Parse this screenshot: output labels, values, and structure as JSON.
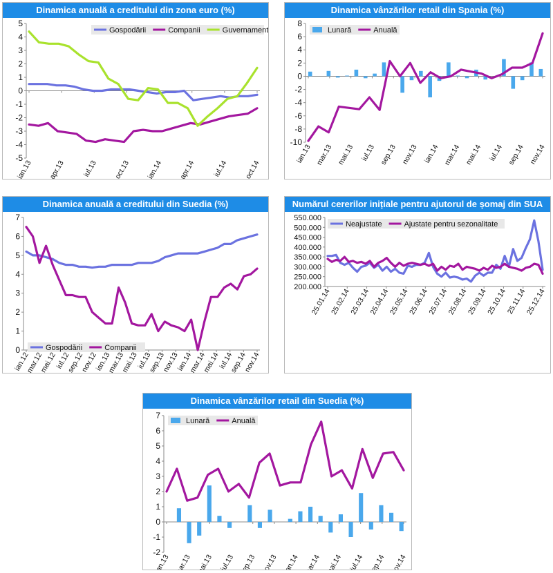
{
  "chart_data": [
    {
      "type": "line",
      "title": "Dinamica anuală a creditului din zona euro (%)",
      "x_labels": [
        "ian.13",
        "apr.13",
        "iul.13",
        "oct.13",
        "ian.14",
        "apr.14",
        "iul.14",
        "oct.14"
      ],
      "ylim": [
        -5,
        5
      ],
      "yticks": [
        5,
        4,
        3,
        2,
        1,
        0,
        -1,
        -2,
        -3,
        -4,
        -5
      ],
      "grid": false,
      "legend_position": "top",
      "series": [
        {
          "name": "Gospodării",
          "color": "#6b72e0",
          "values": [
            0.5,
            0.5,
            0.5,
            0.4,
            0.4,
            0.3,
            0.1,
            0.0,
            0.0,
            0.1,
            0.1,
            0.1,
            0.0,
            -0.1,
            -0.2,
            -0.1,
            -0.1,
            0.0,
            -0.7,
            -0.6,
            -0.5,
            -0.4,
            -0.5,
            -0.4,
            -0.4,
            -0.3
          ]
        },
        {
          "name": "Companii",
          "color": "#a3179f",
          "values": [
            -2.5,
            -2.6,
            -2.4,
            -3.0,
            -3.1,
            -3.2,
            -3.7,
            -3.8,
            -3.6,
            -3.7,
            -3.8,
            -3.0,
            -2.9,
            -3.0,
            -3.0,
            -2.8,
            -2.6,
            -2.4,
            -2.5,
            -2.3,
            -2.1,
            -1.9,
            -1.8,
            -1.7,
            -1.3
          ]
        },
        {
          "name": "Guvernamental",
          "color": "#a9e22d",
          "values": [
            4.4,
            3.6,
            3.5,
            3.5,
            3.3,
            2.7,
            2.2,
            2.1,
            0.9,
            0.5,
            -0.6,
            -0.7,
            0.2,
            0.1,
            -0.9,
            -0.9,
            -1.3,
            -2.6,
            -1.9,
            -1.3,
            -0.6,
            -0.4,
            0.6,
            1.7
          ]
        }
      ]
    },
    {
      "type": "bar+line",
      "title": "Dinamica vânzărilor retail din Spania (%)",
      "x_labels": [
        "ian.13",
        "mar.13",
        "mai.13",
        "iul.13",
        "sep.13",
        "nov.13",
        "ian.14",
        "mar.14",
        "mai.14",
        "iul.14",
        "sep.14",
        "nov.14"
      ],
      "ylim": [
        -10,
        8
      ],
      "yticks": [
        8,
        6,
        4,
        2,
        0,
        -2,
        -4,
        -6,
        -8,
        -10
      ],
      "grid": false,
      "legend_position": "top-left",
      "series": [
        {
          "name": "Lunară",
          "type": "bar",
          "color": "#4aa8ec",
          "values": [
            0.7,
            0.0,
            0.8,
            -0.2,
            0.1,
            1.0,
            -0.3,
            0.4,
            2.1,
            0.0,
            -2.5,
            -0.6,
            0.8,
            -3.2,
            -0.7,
            2.1,
            0.1,
            -0.3,
            1.0,
            -0.5,
            0.0,
            2.6,
            -1.9,
            -0.6,
            2.1,
            1.1
          ]
        },
        {
          "name": "Anuală",
          "type": "line",
          "color": "#a3179f",
          "values": [
            -9.8,
            -7.6,
            -8.5,
            -4.6,
            -4.8,
            -5.0,
            -3.2,
            -5.1,
            2.3,
            0.0,
            2.0,
            -1.0,
            0.6,
            -0.3,
            0.0,
            1.0,
            0.7,
            0.4,
            -0.3,
            0.3,
            1.3,
            1.3,
            2.0,
            6.5
          ]
        }
      ]
    },
    {
      "type": "line",
      "title": "Dinamica anuală a creditului din Suedia (%)",
      "x_labels": [
        "ian.12",
        "mar.12",
        "mai.12",
        "iul.12",
        "sep.12",
        "nov.12",
        "ian.13",
        "mar.13",
        "mai.13",
        "iul.13",
        "sep.13",
        "nov.13",
        "ian.14",
        "mar.14",
        "mai.14",
        "iul.14",
        "sep.14",
        "nov.14"
      ],
      "ylim": [
        0,
        7
      ],
      "yticks": [
        7,
        6,
        5,
        4,
        3,
        2,
        1,
        0
      ],
      "grid": false,
      "legend_position": "bottom-left",
      "series": [
        {
          "name": "Gospodării",
          "color": "#6b72e0",
          "values": [
            5.2,
            5.0,
            5.0,
            4.9,
            4.8,
            4.6,
            4.5,
            4.5,
            4.4,
            4.4,
            4.35,
            4.4,
            4.4,
            4.5,
            4.5,
            4.5,
            4.5,
            4.6,
            4.6,
            4.6,
            4.7,
            4.9,
            5.0,
            5.1,
            5.1,
            5.1,
            5.1,
            5.2,
            5.3,
            5.4,
            5.6,
            5.6,
            5.8,
            5.9,
            6.0,
            6.1
          ]
        },
        {
          "name": "Companii",
          "color": "#a3179f",
          "values": [
            6.5,
            6.0,
            4.6,
            5.5,
            4.5,
            3.7,
            2.9,
            2.9,
            2.8,
            2.8,
            2.0,
            1.7,
            1.4,
            1.4,
            3.3,
            2.5,
            1.4,
            1.3,
            1.3,
            1.9,
            1.0,
            1.5,
            1.3,
            1.2,
            1.0,
            1.6,
            0.0,
            1.5,
            2.8,
            2.8,
            3.3,
            3.5,
            3.2,
            3.9,
            4.0,
            4.3
          ]
        }
      ]
    },
    {
      "type": "line",
      "title": "Numărul cererilor inițiale pentru ajutorul de șomaj din SUA",
      "x_labels": [
        "25.01.14",
        "25.02.14",
        "25.03.14",
        "25.04.14",
        "25.05.14",
        "25.06.14",
        "25.07.14",
        "25.08.14",
        "25.09.14",
        "25.10.14",
        "25.11.14",
        "25.12.14"
      ],
      "ylim": [
        200000,
        550000
      ],
      "yticks": [
        "550.000",
        "500.000",
        "450.000",
        "400.000",
        "350.000",
        "300.000",
        "250.000",
        "200.000"
      ],
      "grid": false,
      "legend_position": "top",
      "series": [
        {
          "name": "Neajustate",
          "color": "#6b72e0",
          "values": [
            355000,
            355000,
            360000,
            320000,
            310000,
            320000,
            295000,
            275000,
            300000,
            305000,
            320000,
            295000,
            310000,
            280000,
            300000,
            275000,
            290000,
            270000,
            265000,
            305000,
            300000,
            310000,
            310000,
            320000,
            370000,
            300000,
            265000,
            250000,
            270000,
            245000,
            250000,
            245000,
            235000,
            240000,
            225000,
            255000,
            270000,
            255000,
            270000,
            270000,
            310000,
            290000,
            355000,
            300000,
            390000,
            330000,
            345000,
            395000,
            440000,
            535000,
            430000,
            285000
          ]
        },
        {
          "name": "Ajustate pentru sezonalitate",
          "color": "#a3179f",
          "values": [
            340000,
            325000,
            335000,
            330000,
            350000,
            325000,
            330000,
            320000,
            325000,
            315000,
            330000,
            300000,
            320000,
            330000,
            345000,
            320000,
            300000,
            320000,
            305000,
            315000,
            320000,
            315000,
            310000,
            315000,
            305000,
            315000,
            280000,
            300000,
            285000,
            305000,
            300000,
            315000,
            285000,
            300000,
            295000,
            290000,
            280000,
            295000,
            285000,
            305000,
            295000,
            300000,
            315000,
            300000,
            295000,
            290000,
            280000,
            295000,
            300000,
            315000,
            310000,
            265000
          ]
        }
      ]
    },
    {
      "type": "bar+line",
      "title": "Dinamica vânzărilor retail din Suedia (%)",
      "x_labels": [
        "ian.13",
        "mar.13",
        "mai.13",
        "iul.13",
        "sep.13",
        "nov.13",
        "ian.14",
        "mar.14",
        "mai.14",
        "iul.14",
        "sep.14",
        "nov.14"
      ],
      "ylim": [
        -2,
        7
      ],
      "yticks": [
        7,
        6,
        5,
        4,
        3,
        2,
        1,
        0,
        -1,
        -2
      ],
      "grid": false,
      "legend_position": "top-left",
      "series": [
        {
          "name": "Lunară",
          "type": "bar",
          "color": "#4aa8ec",
          "values": [
            0.0,
            0.9,
            -1.4,
            -0.9,
            2.4,
            0.4,
            -0.4,
            0.0,
            1.1,
            -0.4,
            0.8,
            0.0,
            0.2,
            0.7,
            1.0,
            0.4,
            -0.7,
            0.5,
            -1.0,
            1.9,
            -0.5,
            1.1,
            0.6,
            -0.6
          ]
        },
        {
          "name": "Anuală",
          "type": "line",
          "color": "#a3179f",
          "values": [
            2.0,
            3.5,
            1.4,
            1.6,
            3.1,
            3.5,
            2.0,
            2.5,
            1.6,
            3.9,
            4.5,
            2.4,
            2.6,
            2.6,
            5.1,
            6.6,
            3.0,
            3.4,
            2.2,
            4.8,
            2.9,
            4.5,
            4.6,
            3.4
          ]
        }
      ]
    }
  ]
}
